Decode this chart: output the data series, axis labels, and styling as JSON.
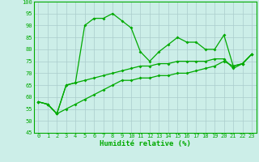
{
  "xlabel": "Humidité relative (%)",
  "bg_color": "#cceee8",
  "grid_color": "#aacccc",
  "line_color": "#00aa00",
  "xlim": [
    0,
    23
  ],
  "ylim": [
    45,
    100
  ],
  "yticks": [
    45,
    50,
    55,
    60,
    65,
    70,
    75,
    80,
    85,
    90,
    95,
    100
  ],
  "xticks": [
    0,
    1,
    2,
    3,
    4,
    5,
    6,
    7,
    8,
    9,
    10,
    11,
    12,
    13,
    14,
    15,
    16,
    17,
    18,
    19,
    20,
    21,
    22,
    23
  ],
  "series1": [
    58,
    57,
    53,
    65,
    66,
    90,
    93,
    93,
    95,
    92,
    89,
    79,
    75,
    79,
    82,
    85,
    83,
    83,
    80,
    80,
    86,
    73,
    74,
    78
  ],
  "series2": [
    58,
    57,
    53,
    65,
    66,
    67,
    68,
    69,
    70,
    71,
    72,
    73,
    73,
    74,
    74,
    75,
    75,
    75,
    75,
    76,
    76,
    72,
    74,
    78
  ],
  "series3": [
    58,
    57,
    53,
    55,
    57,
    59,
    61,
    63,
    65,
    67,
    67,
    68,
    68,
    69,
    69,
    70,
    70,
    71,
    72,
    73,
    75,
    73,
    74,
    78
  ]
}
